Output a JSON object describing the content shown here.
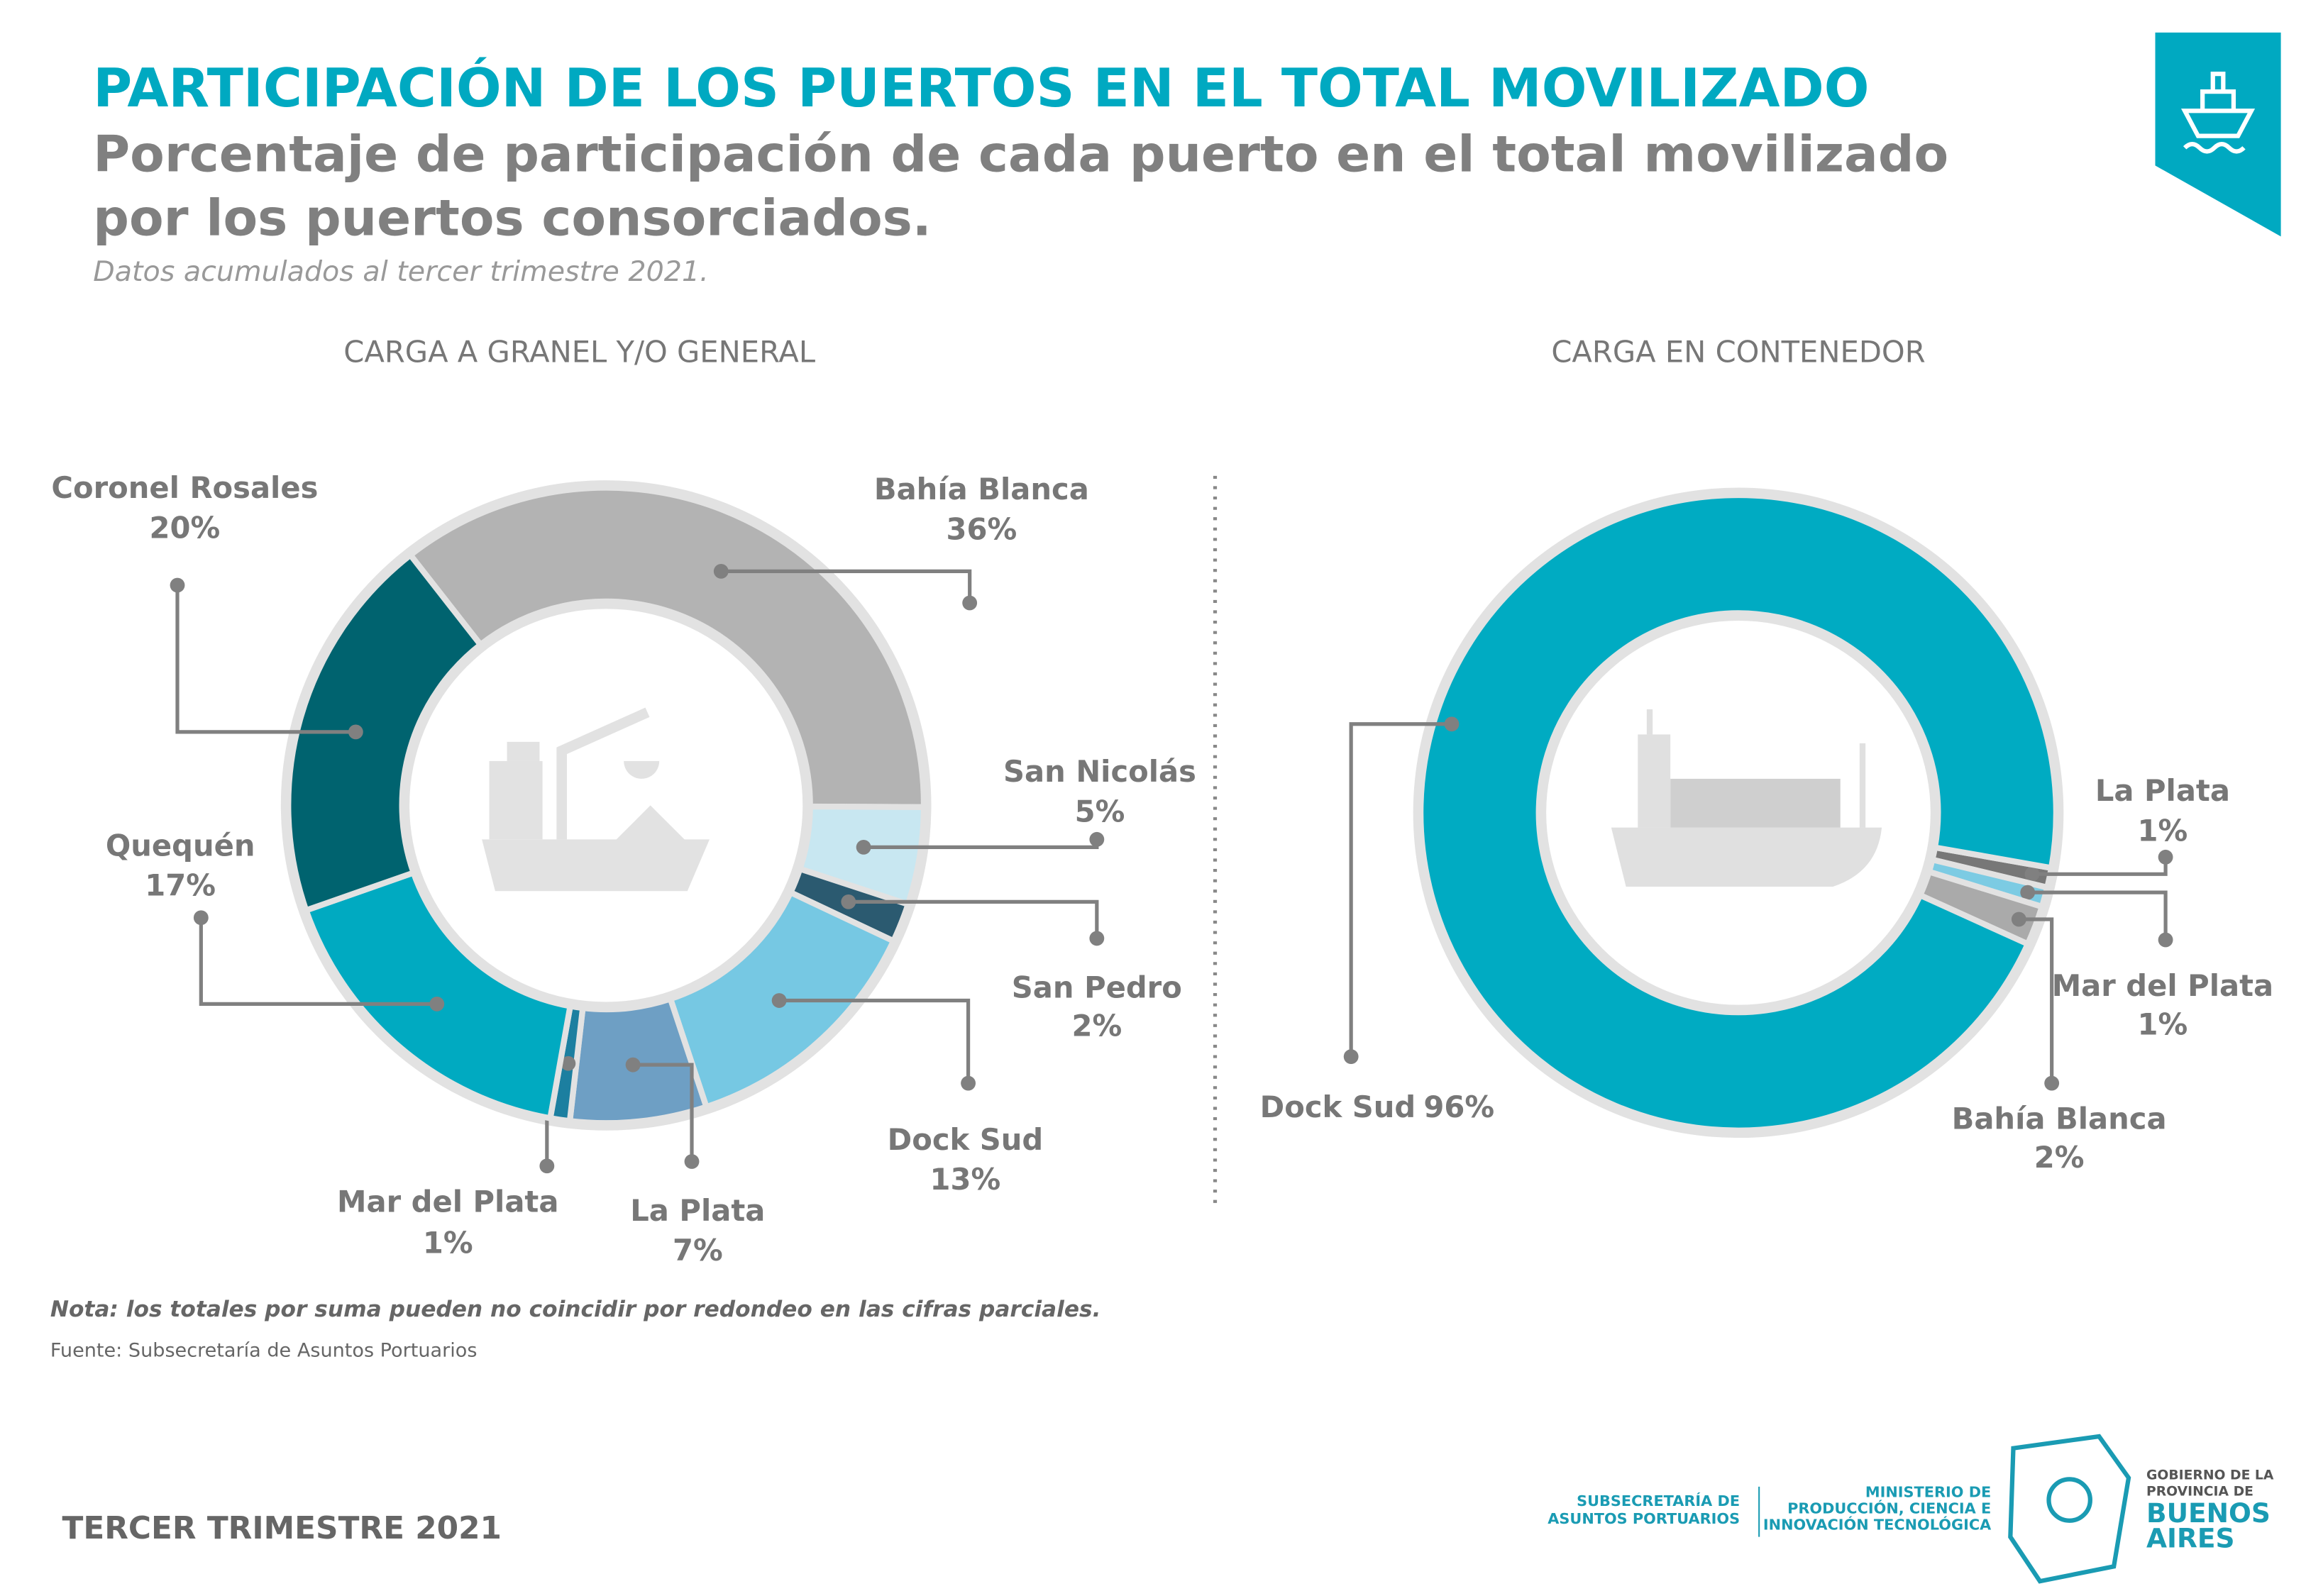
{
  "header": {
    "title": "PARTICIPACIÓN DE LOS PUERTOS EN EL TOTAL MOVILIZADO",
    "subtitle_lines": [
      "Porcentaje de participación de cada puerto en el total movilizado",
      "por los puertos consorciados."
    ],
    "note": "Datos acumulados al tercer trimestre 2021."
  },
  "chart_data": [
    {
      "type": "donut",
      "title": "CARGA A GRANEL Y/O GENERAL",
      "categories": [
        "Bahía Blanca",
        "San Nicolás",
        "San Pedro",
        "Dock Sud",
        "La Plata",
        "Mar del Plata",
        "Quequén",
        "Coronel Rosales"
      ],
      "values": [
        36,
        5,
        2,
        13,
        7,
        1,
        17,
        20
      ],
      "value_labels": [
        "36%",
        "5%",
        "2%",
        "13%",
        "7%",
        "1%",
        "17%",
        "20%"
      ],
      "colors": [
        "#b3b3b3",
        "#c8e7f1",
        "#2b5a70",
        "#76c8e3",
        "#6e9fc4",
        "#1c7fa0",
        "#00aac1",
        "#00636f"
      ]
    },
    {
      "type": "donut",
      "title": "CARGA EN CONTENEDOR",
      "categories": [
        "La Plata",
        "Mar del Plata",
        "Bahía Blanca",
        "Dock Sud"
      ],
      "values": [
        1,
        1,
        2,
        96
      ],
      "value_labels": [
        "1%",
        "1%",
        "2%",
        "96%"
      ],
      "colors": [
        "#777777",
        "#7ccbe3",
        "#aaaaaa",
        "#00abc2"
      ]
    }
  ],
  "footer": {
    "disclaimer": "Nota: los totales por suma pueden no coincidir por redondeo en las cifras parciales.",
    "source": "Fuente: Subsecretaría de Asuntos Portuarios",
    "period": "TERCER TRIMESTRE 2021",
    "logo_subsecretaria": [
      "SUBSECRETARÍA DE",
      "ASUNTOS PORTUARIOS"
    ],
    "logo_ministerio": [
      "MINISTERIO DE",
      "PRODUCCIÓN, CIENCIA E",
      "INNOVACIÓN TECNOLÓGICA"
    ],
    "logo_gobierno": [
      "GOBIERNO DE LA",
      "PROVINCIA DE",
      "BUENOS",
      "AIRES"
    ]
  }
}
